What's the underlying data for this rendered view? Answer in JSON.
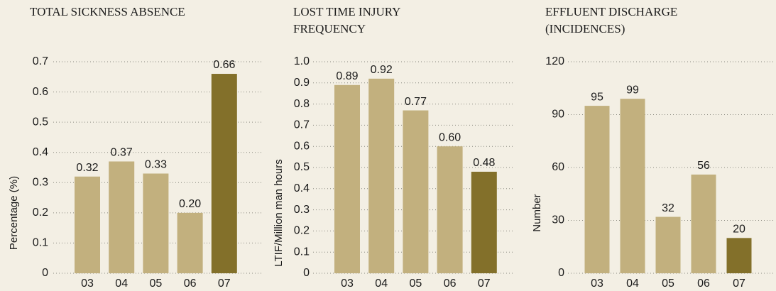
{
  "chart_data": [
    {
      "type": "bar",
      "title": [
        "TOTAL SICKNESS ABSENCE"
      ],
      "y_label": "Percentage (%)",
      "categories": [
        "03",
        "04",
        "05",
        "06",
        "07"
      ],
      "values": [
        0.32,
        0.37,
        0.33,
        0.2,
        0.66
      ],
      "value_labels": [
        "0.32",
        "0.37",
        "0.33",
        "0.20",
        "0.66"
      ],
      "colors": [
        "#c2b07e",
        "#c2b07e",
        "#c2b07e",
        "#c2b07e",
        "#83702a"
      ],
      "ylim": [
        0,
        0.7
      ],
      "yticks": [
        0,
        0.1,
        0.2,
        0.3,
        0.4,
        0.5,
        0.6,
        0.7
      ],
      "grid": true
    },
    {
      "type": "bar",
      "title": [
        "LOST TIME INJURY",
        "FREQUENCY"
      ],
      "y_label": "LTIF/Million man hours",
      "categories": [
        "03",
        "04",
        "05",
        "06",
        "07"
      ],
      "values": [
        0.89,
        0.92,
        0.77,
        0.6,
        0.48
      ],
      "value_labels": [
        "0.89",
        "0.92",
        "0.77",
        "0.60",
        "0.48"
      ],
      "colors": [
        "#c2b07e",
        "#c2b07e",
        "#c2b07e",
        "#c2b07e",
        "#83702a"
      ],
      "ylim": [
        0,
        1.0
      ],
      "yticks": [
        0,
        0.1,
        0.2,
        0.3,
        0.4,
        0.5,
        0.6,
        0.7,
        0.8,
        0.9,
        {
          "value": 1.0,
          "label": "1.0"
        }
      ],
      "grid": true
    },
    {
      "type": "bar",
      "title": [
        "EFFLUENT DISCHARGE",
        "(INCIDENCES)"
      ],
      "y_label": "Number",
      "categories": [
        "03",
        "04",
        "05",
        "06",
        "07"
      ],
      "values": [
        95,
        99,
        32,
        56,
        20
      ],
      "colors": [
        "#c2b07e",
        "#c2b07e",
        "#c2b07e",
        "#c2b07e",
        "#83702a"
      ],
      "ylim": [
        0,
        120
      ],
      "yticks": [
        0,
        30,
        60,
        90,
        120
      ],
      "grid": true
    }
  ]
}
